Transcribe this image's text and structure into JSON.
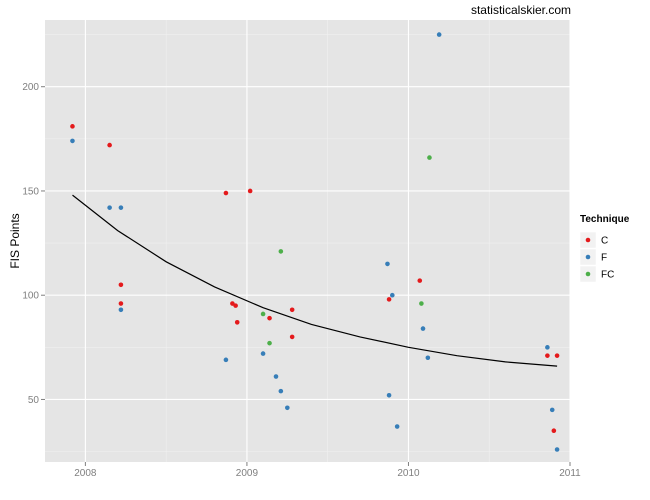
{
  "watermark": "statisticalskier.com",
  "chart_data": {
    "type": "scatter",
    "title": "",
    "xlabel": "",
    "ylabel": "FIS Points",
    "xlim": [
      2007.75,
      2011.0
    ],
    "ylim": [
      20,
      232
    ],
    "x_ticks": [
      2008,
      2009,
      2010,
      2011
    ],
    "x_tick_labels": [
      "2008",
      "2009",
      "2010",
      "2011"
    ],
    "y_ticks": [
      50,
      100,
      150,
      200
    ],
    "y_tick_labels": [
      "50",
      "100",
      "150",
      "200"
    ],
    "grid": true,
    "legend": {
      "title": "Technique",
      "position": "right"
    },
    "series": [
      {
        "name": "C",
        "color": "#e41a1c",
        "points": [
          {
            "x": 2007.92,
            "y": 181
          },
          {
            "x": 2008.15,
            "y": 172
          },
          {
            "x": 2008.22,
            "y": 105
          },
          {
            "x": 2008.22,
            "y": 96
          },
          {
            "x": 2008.87,
            "y": 149
          },
          {
            "x": 2009.02,
            "y": 150
          },
          {
            "x": 2008.91,
            "y": 96
          },
          {
            "x": 2008.93,
            "y": 95
          },
          {
            "x": 2008.94,
            "y": 87
          },
          {
            "x": 2009.14,
            "y": 89
          },
          {
            "x": 2009.28,
            "y": 93
          },
          {
            "x": 2009.28,
            "y": 80
          },
          {
            "x": 2009.88,
            "y": 98
          },
          {
            "x": 2010.07,
            "y": 107
          },
          {
            "x": 2010.86,
            "y": 71
          },
          {
            "x": 2010.92,
            "y": 71
          },
          {
            "x": 2010.9,
            "y": 35
          }
        ]
      },
      {
        "name": "F",
        "color": "#377eb8",
        "points": [
          {
            "x": 2007.92,
            "y": 174
          },
          {
            "x": 2008.15,
            "y": 142
          },
          {
            "x": 2008.22,
            "y": 142
          },
          {
            "x": 2008.22,
            "y": 93
          },
          {
            "x": 2008.87,
            "y": 69
          },
          {
            "x": 2009.1,
            "y": 72
          },
          {
            "x": 2009.18,
            "y": 61
          },
          {
            "x": 2009.21,
            "y": 54
          },
          {
            "x": 2009.25,
            "y": 46
          },
          {
            "x": 2009.87,
            "y": 115
          },
          {
            "x": 2009.9,
            "y": 100
          },
          {
            "x": 2009.88,
            "y": 52
          },
          {
            "x": 2009.93,
            "y": 37
          },
          {
            "x": 2010.09,
            "y": 84
          },
          {
            "x": 2010.12,
            "y": 70
          },
          {
            "x": 2010.19,
            "y": 225
          },
          {
            "x": 2010.86,
            "y": 75
          },
          {
            "x": 2010.89,
            "y": 45
          },
          {
            "x": 2010.92,
            "y": 26
          }
        ]
      },
      {
        "name": "FC",
        "color": "#4daf4a",
        "points": [
          {
            "x": 2009.21,
            "y": 121
          },
          {
            "x": 2009.1,
            "y": 91
          },
          {
            "x": 2009.14,
            "y": 77
          },
          {
            "x": 2010.08,
            "y": 96
          },
          {
            "x": 2010.13,
            "y": 166
          }
        ]
      }
    ],
    "trend_line": {
      "color": "#000000",
      "points": [
        {
          "x": 2007.92,
          "y": 148
        },
        {
          "x": 2008.2,
          "y": 131
        },
        {
          "x": 2008.5,
          "y": 116
        },
        {
          "x": 2008.8,
          "y": 104
        },
        {
          "x": 2009.1,
          "y": 94
        },
        {
          "x": 2009.4,
          "y": 86
        },
        {
          "x": 2009.7,
          "y": 80
        },
        {
          "x": 2010.0,
          "y": 75
        },
        {
          "x": 2010.3,
          "y": 71
        },
        {
          "x": 2010.6,
          "y": 68
        },
        {
          "x": 2010.92,
          "y": 66
        }
      ]
    }
  }
}
